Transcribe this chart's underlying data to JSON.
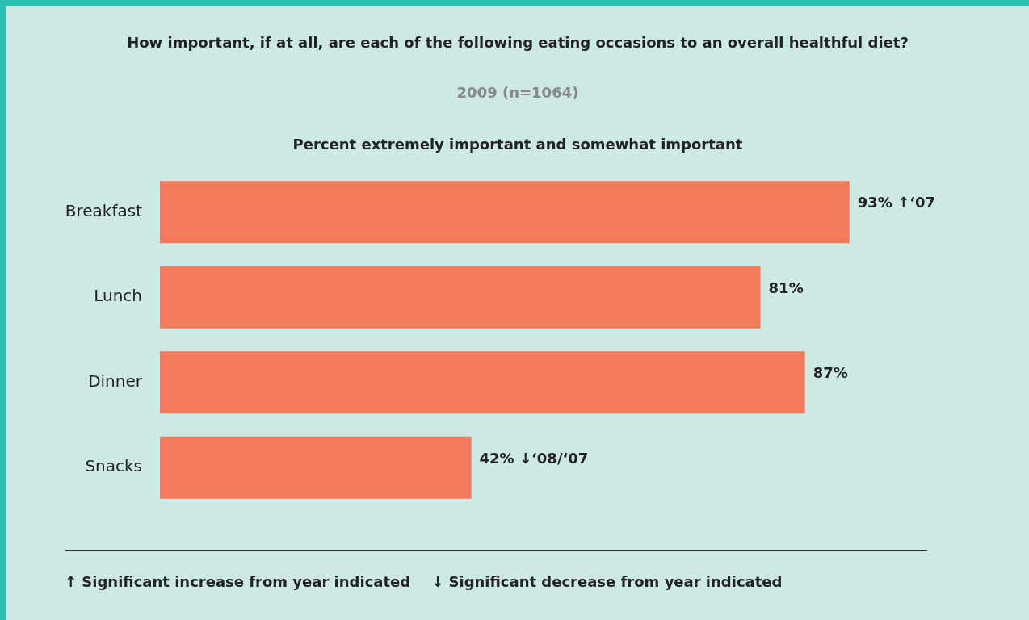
{
  "chart_data": {
    "type": "bar",
    "orientation": "horizontal",
    "title": "How important, if at all, are each of the following eating occasions to an overall healthful diet?",
    "subtitle": "2009 (n=1064)",
    "xlabel": "Percent extremely important and somewhat important",
    "categories": [
      "Breakfast",
      "Lunch",
      "Dinner",
      "Snacks"
    ],
    "values": [
      93,
      81,
      87,
      42
    ],
    "value_labels": [
      "93% ↑‘07",
      "81%",
      "87%",
      "42% ↓‘08/‘07"
    ],
    "color": "#f27b5c",
    "annotations": [
      "↑ Significant increase from year indicated",
      "↓ Significant decrease from year indicated"
    ]
  }
}
